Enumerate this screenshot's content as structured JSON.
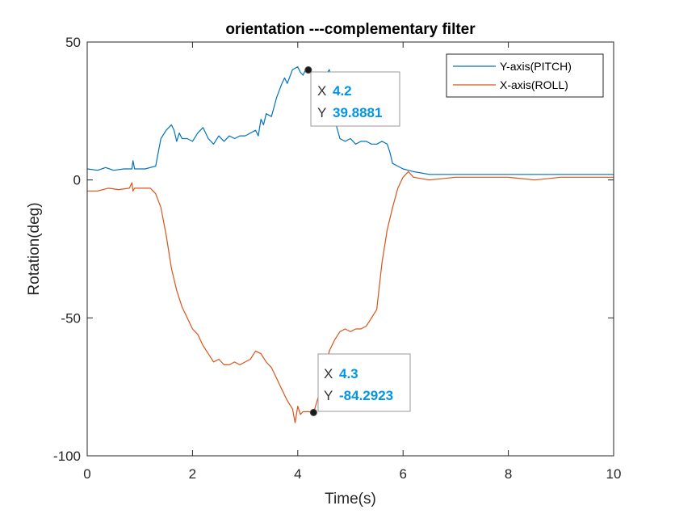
{
  "chart_data": {
    "type": "line",
    "title": "orientation ---complementary filter",
    "xlabel": "Time(s)",
    "ylabel": "Rotation(deg)",
    "xlim": [
      0,
      10
    ],
    "ylim": [
      -100,
      50
    ],
    "xticks": [
      0,
      2,
      4,
      6,
      8,
      10
    ],
    "yticks": [
      -100,
      -50,
      0,
      50
    ],
    "xtick_labels": [
      "0",
      "2",
      "4",
      "6",
      "8",
      "10"
    ],
    "ytick_labels": [
      "-100",
      "-50",
      "0",
      "50"
    ],
    "grid": false,
    "legend_position": "top-right",
    "series": [
      {
        "name": "Y-axis(PITCH)",
        "color": "#0072BD",
        "x": [
          0,
          0.2,
          0.35,
          0.5,
          0.7,
          0.85,
          0.87,
          0.9,
          1.1,
          1.3,
          1.35,
          1.4,
          1.5,
          1.6,
          1.65,
          1.7,
          1.75,
          1.8,
          1.9,
          2.0,
          2.1,
          2.2,
          2.3,
          2.4,
          2.5,
          2.6,
          2.7,
          2.8,
          2.9,
          3.0,
          3.1,
          3.2,
          3.25,
          3.3,
          3.35,
          3.4,
          3.5,
          3.6,
          3.7,
          3.75,
          3.8,
          3.9,
          4.0,
          4.05,
          4.1,
          4.15,
          4.2,
          4.3,
          4.4,
          4.5,
          4.6,
          4.7,
          4.8,
          4.9,
          5.0,
          5.1,
          5.2,
          5.3,
          5.4,
          5.5,
          5.6,
          5.7,
          5.75,
          5.8,
          5.9,
          6.0,
          6.2,
          6.5,
          7.0,
          7.5,
          8.0,
          8.5,
          9.0,
          9.5,
          10.0
        ],
        "y": [
          4,
          3.5,
          4.5,
          3.5,
          4,
          4,
          7,
          4,
          4,
          5,
          10,
          15,
          18,
          20,
          18,
          14,
          17,
          15,
          15,
          14,
          17,
          19,
          15,
          13,
          16,
          14,
          16,
          15,
          16,
          16,
          17,
          18,
          16,
          22,
          20,
          24,
          23,
          30,
          35,
          37,
          35,
          40,
          41,
          39,
          38,
          40,
          39.8881,
          38,
          35,
          37,
          40,
          22,
          15,
          14,
          15,
          13,
          14,
          14,
          13,
          13,
          14,
          13,
          10,
          6,
          5,
          4,
          3,
          2,
          2,
          2,
          2,
          2,
          2,
          2,
          2
        ]
      },
      {
        "name": "X-axis(ROLL)",
        "color": "#D95319",
        "x": [
          0,
          0.2,
          0.4,
          0.6,
          0.8,
          0.85,
          0.87,
          0.9,
          1.0,
          1.2,
          1.3,
          1.4,
          1.5,
          1.6,
          1.7,
          1.8,
          1.9,
          2.0,
          2.1,
          2.2,
          2.3,
          2.4,
          2.5,
          2.6,
          2.7,
          2.8,
          2.9,
          3.0,
          3.1,
          3.2,
          3.3,
          3.4,
          3.5,
          3.6,
          3.7,
          3.8,
          3.9,
          3.95,
          4.0,
          4.05,
          4.1,
          4.2,
          4.3,
          4.4,
          4.5,
          4.6,
          4.7,
          4.8,
          4.9,
          5.0,
          5.1,
          5.2,
          5.3,
          5.4,
          5.5,
          5.6,
          5.7,
          5.8,
          5.9,
          6.0,
          6.1,
          6.2,
          6.5,
          7.0,
          7.5,
          8.0,
          8.5,
          9.0,
          9.5,
          10.0
        ],
        "y": [
          -4,
          -4,
          -3,
          -3.5,
          -3,
          -1,
          -4,
          -3,
          -3,
          -3,
          -5,
          -10,
          -20,
          -32,
          -40,
          -46,
          -50,
          -54,
          -56,
          -60,
          -63,
          -66,
          -65,
          -67,
          -67,
          -66,
          -67,
          -66,
          -65,
          -62,
          -63,
          -66,
          -68,
          -72,
          -76,
          -80,
          -83,
          -88,
          -82,
          -85,
          -84,
          -84,
          -84.2923,
          -78,
          -70,
          -62,
          -58,
          -55,
          -54,
          -55,
          -54,
          -54,
          -53,
          -50,
          -47,
          -30,
          -18,
          -10,
          -3,
          1,
          3,
          1,
          0,
          1,
          1,
          1,
          0,
          1,
          1,
          1
        ]
      }
    ],
    "annotations": [
      {
        "series": "Y-axis(PITCH)",
        "x": 4.2,
        "y": 39.8881,
        "x_label": "X",
        "y_label": "Y",
        "x_text": "4.2",
        "y_text": "39.8881"
      },
      {
        "series": "X-axis(ROLL)",
        "x": 4.3,
        "y": -84.2923,
        "x_label": "X",
        "y_label": "Y",
        "x_text": "4.3",
        "y_text": "-84.2923"
      }
    ],
    "annotation_value_color": "#0096e6"
  }
}
